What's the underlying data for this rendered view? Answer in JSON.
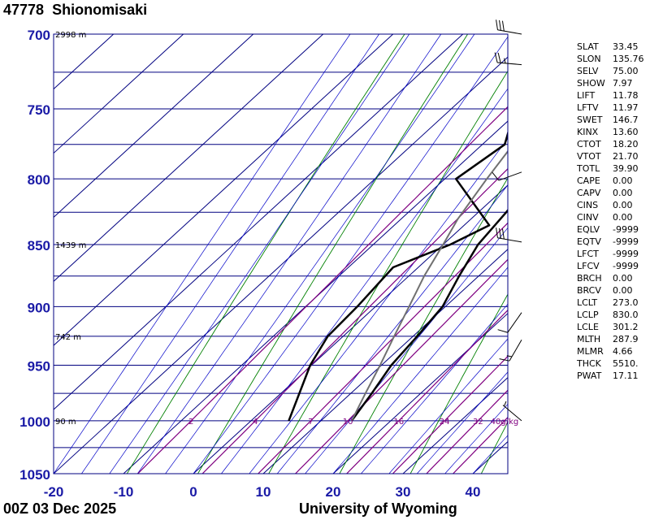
{
  "station": {
    "id": "47778",
    "name": "Shionomisaki"
  },
  "time_label": "00Z 03 Dec 2025",
  "source_label": "University of Wyoming",
  "colors": {
    "axis_label": "#1a1aa6",
    "isobar": "#000080",
    "isotherm": "#000080",
    "dry_adiabat": "#008000",
    "moist_adiabat": "#0000c8",
    "mixing_ratio": "#800080",
    "profile": "#000000",
    "parcel": "#707070"
  },
  "indices": [
    {
      "k": "SLAT",
      "v": "33.45"
    },
    {
      "k": "SLON",
      "v": "135.76"
    },
    {
      "k": "SELV",
      "v": "75.00"
    },
    {
      "k": "SHOW",
      "v": "7.97"
    },
    {
      "k": "LIFT",
      "v": "11.78"
    },
    {
      "k": "LFTV",
      "v": "11.97"
    },
    {
      "k": "SWET",
      "v": "146.7"
    },
    {
      "k": "KINX",
      "v": "13.60"
    },
    {
      "k": "CTOT",
      "v": "18.20"
    },
    {
      "k": "VTOT",
      "v": "21.70"
    },
    {
      "k": "TOTL",
      "v": "39.90"
    },
    {
      "k": "CAPE",
      "v": "0.00"
    },
    {
      "k": "CAPV",
      "v": "0.00"
    },
    {
      "k": "CINS",
      "v": "0.00"
    },
    {
      "k": "CINV",
      "v": "0.00"
    },
    {
      "k": "EQLV",
      "v": "-9999"
    },
    {
      "k": "EQTV",
      "v": "-9999"
    },
    {
      "k": "LFCT",
      "v": "-9999"
    },
    {
      "k": "LFCV",
      "v": "-9999"
    },
    {
      "k": "BRCH",
      "v": "0.00"
    },
    {
      "k": "BRCV",
      "v": "0.00"
    },
    {
      "k": "LCLT",
      "v": "273.0"
    },
    {
      "k": "LCLP",
      "v": "830.0"
    },
    {
      "k": "LCLE",
      "v": "301.2"
    },
    {
      "k": "MLTH",
      "v": "287.9"
    },
    {
      "k": "MLMR",
      "v": "4.66"
    },
    {
      "k": "THCK",
      "v": "5510."
    },
    {
      "k": "PWAT",
      "v": "17.11"
    }
  ],
  "chart_data": {
    "type": "line",
    "chart_kind": "skew-T log-p",
    "x_label_ticks": [
      -20,
      -10,
      0,
      10,
      20,
      30,
      40
    ],
    "x_range_at_bottom": [
      -20,
      45
    ],
    "pressure_range": [
      700,
      1050
    ],
    "y_label_ticks": [
      700,
      750,
      800,
      850,
      900,
      950,
      1000,
      1050
    ],
    "isobars": [
      700,
      725,
      750,
      775,
      800,
      825,
      850,
      875,
      900,
      925,
      950,
      975,
      1000,
      1025,
      1050
    ],
    "height_labels": [
      {
        "p": 700,
        "label": "2998 m"
      },
      {
        "p": 850,
        "label": "1439 m"
      },
      {
        "p": 925,
        "label": "742 m"
      },
      {
        "p": 1000,
        "label": "90 m"
      }
    ],
    "mixing_ratio_labels": [
      {
        "value": 2,
        "label": "2"
      },
      {
        "value": 4,
        "label": "4"
      },
      {
        "value": 7,
        "label": "7"
      },
      {
        "value": 10,
        "label": "10"
      },
      {
        "value": 16,
        "label": "16"
      },
      {
        "value": 24,
        "label": "24"
      },
      {
        "value": 32,
        "label": "32"
      },
      {
        "value": 40,
        "label": "40g/kg"
      }
    ],
    "series": [
      {
        "role": "temperature",
        "points": [
          [
            1000,
            14.4
          ],
          [
            975,
            13.0
          ],
          [
            950,
            11.4
          ],
          [
            925,
            10.6
          ],
          [
            900,
            9.6
          ],
          [
            875,
            7.2
          ],
          [
            850,
            5.0
          ],
          [
            825,
            4.0
          ],
          [
            800,
            2.6
          ],
          [
            775,
            1.0
          ],
          [
            750,
            -1.4
          ],
          [
            725,
            -3.2
          ],
          [
            700,
            -4.8
          ]
        ]
      },
      {
        "role": "dewpoint",
        "points": [
          [
            1000,
            5.4
          ],
          [
            950,
            -0.2
          ],
          [
            925,
            -2.2
          ],
          [
            900,
            -2.6
          ],
          [
            868,
            -3.6
          ],
          [
            850,
            1.0
          ],
          [
            835,
            3.6
          ],
          [
            800,
            -8.4
          ],
          [
            775,
            -6.8
          ],
          [
            715,
            -16.8
          ],
          [
            700,
            -16.8
          ]
        ]
      },
      {
        "role": "parcel",
        "points": [
          [
            1000,
            14.4
          ],
          [
            975,
            12.1
          ],
          [
            950,
            9.8
          ],
          [
            925,
            7.3
          ],
          [
            900,
            4.8
          ],
          [
            875,
            2.2
          ],
          [
            850,
            0.0
          ],
          [
            830,
            -1.9
          ],
          [
            800,
            -4.0
          ],
          [
            775,
            -5.6
          ],
          [
            750,
            -7.5
          ],
          [
            725,
            -9.5
          ],
          [
            700,
            -11.5
          ]
        ]
      }
    ],
    "wind_barbs": [
      {
        "p": 700,
        "dir": 280,
        "speed_kt": 30
      },
      {
        "p": 720,
        "dir": 275,
        "speed_kt": 25
      },
      {
        "p": 795,
        "dir": 250,
        "speed_kt": 10
      },
      {
        "p": 848,
        "dir": 280,
        "speed_kt": 30
      },
      {
        "p": 905,
        "dir": 215,
        "speed_kt": 10
      },
      {
        "p": 928,
        "dir": 210,
        "speed_kt": 15
      },
      {
        "p": 1000,
        "dir": 310,
        "speed_kt": 5
      }
    ]
  }
}
